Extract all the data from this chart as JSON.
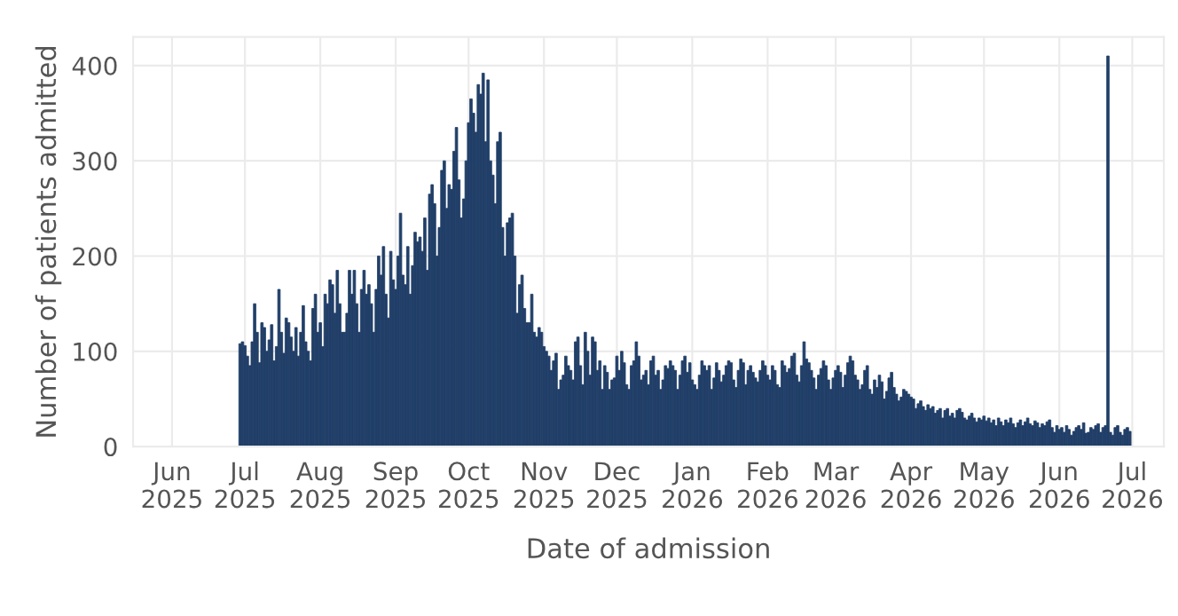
{
  "chart_data": {
    "type": "bar",
    "xlabel": "Date of admission",
    "ylabel": "Number of patients admitted",
    "color": "#213f68",
    "grid": true,
    "xlim": [
      "2025-05-16",
      "2026-07-14"
    ],
    "ylim": [
      0,
      430
    ],
    "yticks": [
      0,
      100,
      200,
      300,
      400
    ],
    "xticks": [
      {
        "value": "2025-06-01",
        "label": "Jun\n2025"
      },
      {
        "value": "2025-07-01",
        "label": "Jul\n2025"
      },
      {
        "value": "2025-08-01",
        "label": "Aug\n2025"
      },
      {
        "value": "2025-09-01",
        "label": "Sep\n2025"
      },
      {
        "value": "2025-10-01",
        "label": "Oct\n2025"
      },
      {
        "value": "2025-11-01",
        "label": "Nov\n2025"
      },
      {
        "value": "2025-12-01",
        "label": "Dec\n2025"
      },
      {
        "value": "2026-01-01",
        "label": "Jan\n2026"
      },
      {
        "value": "2026-02-01",
        "label": "Feb\n2026"
      },
      {
        "value": "2026-03-01",
        "label": "Mar\n2026"
      },
      {
        "value": "2026-04-01",
        "label": "Apr\n2026"
      },
      {
        "value": "2026-05-01",
        "label": "May\n2026"
      },
      {
        "value": "2026-06-01",
        "label": "Jun\n2026"
      },
      {
        "value": "2026-07-01",
        "label": "Jul\n2026"
      }
    ],
    "x": [
      "2025-06-29",
      "2025-06-30",
      "2025-07-01",
      "2025-07-02",
      "2025-07-03",
      "2025-07-04",
      "2025-07-05",
      "2025-07-06",
      "2025-07-07",
      "2025-07-08",
      "2025-07-09",
      "2025-07-10",
      "2025-07-11",
      "2025-07-12",
      "2025-07-13",
      "2025-07-14",
      "2025-07-15",
      "2025-07-16",
      "2025-07-17",
      "2025-07-18",
      "2025-07-19",
      "2025-07-20",
      "2025-07-21",
      "2025-07-22",
      "2025-07-23",
      "2025-07-24",
      "2025-07-25",
      "2025-07-26",
      "2025-07-27",
      "2025-07-28",
      "2025-07-29",
      "2025-07-30",
      "2025-07-31",
      "2025-08-01",
      "2025-08-02",
      "2025-08-03",
      "2025-08-04",
      "2025-08-05",
      "2025-08-06",
      "2025-08-07",
      "2025-08-08",
      "2025-08-09",
      "2025-08-10",
      "2025-08-11",
      "2025-08-12",
      "2025-08-13",
      "2025-08-14",
      "2025-08-15",
      "2025-08-16",
      "2025-08-17",
      "2025-08-18",
      "2025-08-19",
      "2025-08-20",
      "2025-08-21",
      "2025-08-22",
      "2025-08-23",
      "2025-08-24",
      "2025-08-25",
      "2025-08-26",
      "2025-08-27",
      "2025-08-28",
      "2025-08-29",
      "2025-08-30",
      "2025-08-31",
      "2025-09-01",
      "2025-09-02",
      "2025-09-03",
      "2025-09-04",
      "2025-09-05",
      "2025-09-06",
      "2025-09-07",
      "2025-09-08",
      "2025-09-09",
      "2025-09-10",
      "2025-09-11",
      "2025-09-12",
      "2025-09-13",
      "2025-09-14",
      "2025-09-15",
      "2025-09-16",
      "2025-09-17",
      "2025-09-18",
      "2025-09-19",
      "2025-09-20",
      "2025-09-21",
      "2025-09-22",
      "2025-09-23",
      "2025-09-24",
      "2025-09-25",
      "2025-09-26",
      "2025-09-27",
      "2025-09-28",
      "2025-09-29",
      "2025-09-30",
      "2025-10-01",
      "2025-10-02",
      "2025-10-03",
      "2025-10-04",
      "2025-10-05",
      "2025-10-06",
      "2025-10-07",
      "2025-10-08",
      "2025-10-09",
      "2025-10-10",
      "2025-10-11",
      "2025-10-12",
      "2025-10-13",
      "2025-10-14",
      "2025-10-15",
      "2025-10-16",
      "2025-10-17",
      "2025-10-18",
      "2025-10-19",
      "2025-10-20",
      "2025-10-21",
      "2025-10-22",
      "2025-10-23",
      "2025-10-24",
      "2025-10-25",
      "2025-10-26",
      "2025-10-27",
      "2025-10-28",
      "2025-10-29",
      "2025-10-30",
      "2025-10-31",
      "2025-11-01",
      "2025-11-02",
      "2025-11-03",
      "2025-11-04",
      "2025-11-05",
      "2025-11-06",
      "2025-11-07",
      "2025-11-08",
      "2025-11-09",
      "2025-11-10",
      "2025-11-11",
      "2025-11-12",
      "2025-11-13",
      "2025-11-14",
      "2025-11-15",
      "2025-11-16",
      "2025-11-17",
      "2025-11-18",
      "2025-11-19",
      "2025-11-20",
      "2025-11-21",
      "2025-11-22",
      "2025-11-23",
      "2025-11-24",
      "2025-11-25",
      "2025-11-26",
      "2025-11-27",
      "2025-11-28",
      "2025-11-29",
      "2025-11-30",
      "2025-12-01",
      "2025-12-02",
      "2025-12-03",
      "2025-12-04",
      "2025-12-05",
      "2025-12-06",
      "2025-12-07",
      "2025-12-08",
      "2025-12-09",
      "2025-12-10",
      "2025-12-11",
      "2025-12-12",
      "2025-12-13",
      "2025-12-14",
      "2025-12-15",
      "2025-12-16",
      "2025-12-17",
      "2025-12-18",
      "2025-12-19",
      "2025-12-20",
      "2025-12-21",
      "2025-12-22",
      "2025-12-23",
      "2025-12-24",
      "2025-12-25",
      "2025-12-26",
      "2025-12-27",
      "2025-12-28",
      "2025-12-29",
      "2025-12-30",
      "2025-12-31",
      "2026-01-01",
      "2026-01-02",
      "2026-01-03",
      "2026-01-04",
      "2026-01-05",
      "2026-01-06",
      "2026-01-07",
      "2026-01-08",
      "2026-01-09",
      "2026-01-10",
      "2026-01-11",
      "2026-01-12",
      "2026-01-13",
      "2026-01-14",
      "2026-01-15",
      "2026-01-16",
      "2026-01-17",
      "2026-01-18",
      "2026-01-19",
      "2026-01-20",
      "2026-01-21",
      "2026-01-22",
      "2026-01-23",
      "2026-01-24",
      "2026-01-25",
      "2026-01-26",
      "2026-01-27",
      "2026-01-28",
      "2026-01-29",
      "2026-01-30",
      "2026-01-31",
      "2026-02-01",
      "2026-02-02",
      "2026-02-03",
      "2026-02-04",
      "2026-02-05",
      "2026-02-06",
      "2026-02-07",
      "2026-02-08",
      "2026-02-09",
      "2026-02-10",
      "2026-02-11",
      "2026-02-12",
      "2026-02-13",
      "2026-02-14",
      "2026-02-15",
      "2026-02-16",
      "2026-02-17",
      "2026-02-18",
      "2026-02-19",
      "2026-02-20",
      "2026-02-21",
      "2026-02-22",
      "2026-02-23",
      "2026-02-24",
      "2026-02-25",
      "2026-02-26",
      "2026-02-27",
      "2026-02-28",
      "2026-03-01",
      "2026-03-02",
      "2026-03-03",
      "2026-03-04",
      "2026-03-05",
      "2026-03-06",
      "2026-03-07",
      "2026-03-08",
      "2026-03-09",
      "2026-03-10",
      "2026-03-11",
      "2026-03-12",
      "2026-03-13",
      "2026-03-14",
      "2026-03-15",
      "2026-03-16",
      "2026-03-17",
      "2026-03-18",
      "2026-03-19",
      "2026-03-20",
      "2026-03-21",
      "2026-03-22",
      "2026-03-23",
      "2026-03-24",
      "2026-03-25",
      "2026-03-26",
      "2026-03-27",
      "2026-03-28",
      "2026-03-29",
      "2026-03-30",
      "2026-03-31",
      "2026-04-01",
      "2026-04-02",
      "2026-04-03",
      "2026-04-04",
      "2026-04-05",
      "2026-04-06",
      "2026-04-07",
      "2026-04-08",
      "2026-04-09",
      "2026-04-10",
      "2026-04-11",
      "2026-04-12",
      "2026-04-13",
      "2026-04-14",
      "2026-04-15",
      "2026-04-16",
      "2026-04-17",
      "2026-04-18",
      "2026-04-19",
      "2026-04-20",
      "2026-04-21",
      "2026-04-22",
      "2026-04-23",
      "2026-04-24",
      "2026-04-25",
      "2026-04-26",
      "2026-04-27",
      "2026-04-28",
      "2026-04-29",
      "2026-04-30",
      "2026-05-01",
      "2026-05-02",
      "2026-05-03",
      "2026-05-04",
      "2026-05-05",
      "2026-05-06",
      "2026-05-07",
      "2026-05-08",
      "2026-05-09",
      "2026-05-10",
      "2026-05-11",
      "2026-05-12",
      "2026-05-13",
      "2026-05-14",
      "2026-05-15",
      "2026-05-16",
      "2026-05-17",
      "2026-05-18",
      "2026-05-19",
      "2026-05-20",
      "2026-05-21",
      "2026-05-22",
      "2026-05-23",
      "2026-05-24",
      "2026-05-25",
      "2026-05-26",
      "2026-05-27",
      "2026-05-28",
      "2026-05-29",
      "2026-05-30",
      "2026-05-31",
      "2026-06-01",
      "2026-06-02",
      "2026-06-03",
      "2026-06-04",
      "2026-06-05",
      "2026-06-06",
      "2026-06-07",
      "2026-06-08",
      "2026-06-09",
      "2026-06-10",
      "2026-06-11",
      "2026-06-12",
      "2026-06-13",
      "2026-06-14",
      "2026-06-15",
      "2026-06-16",
      "2026-06-17",
      "2026-06-18",
      "2026-06-19",
      "2026-06-20",
      "2026-06-21",
      "2026-06-22",
      "2026-06-23",
      "2026-06-24",
      "2026-06-25",
      "2026-06-26",
      "2026-06-27",
      "2026-06-28",
      "2026-06-29",
      "2026-06-30"
    ],
    "values": [
      108,
      110,
      106,
      95,
      85,
      110,
      150,
      120,
      88,
      130,
      125,
      100,
      112,
      128,
      90,
      105,
      165,
      120,
      98,
      135,
      130,
      115,
      100,
      125,
      95,
      120,
      148,
      110,
      100,
      90,
      145,
      160,
      120,
      130,
      105,
      160,
      150,
      175,
      170,
      140,
      185,
      150,
      120,
      120,
      140,
      185,
      160,
      185,
      150,
      120,
      165,
      185,
      160,
      170,
      150,
      120,
      165,
      200,
      180,
      210,
      160,
      135,
      205,
      175,
      165,
      200,
      245,
      180,
      170,
      210,
      160,
      190,
      225,
      215,
      220,
      205,
      240,
      185,
      265,
      275,
      255,
      200,
      230,
      290,
      300,
      250,
      275,
      270,
      310,
      335,
      280,
      240,
      260,
      300,
      340,
      365,
      350,
      330,
      380,
      370,
      392,
      320,
      385,
      300,
      285,
      255,
      320,
      330,
      230,
      200,
      235,
      240,
      245,
      200,
      140,
      170,
      180,
      145,
      130,
      130,
      160,
      120,
      115,
      125,
      120,
      105,
      100,
      95,
      80,
      90,
      98,
      60,
      70,
      75,
      95,
      85,
      80,
      70,
      110,
      115,
      85,
      65,
      120,
      100,
      75,
      115,
      110,
      80,
      90,
      60,
      85,
      78,
      60,
      70,
      72,
      95,
      80,
      100,
      88,
      65,
      60,
      85,
      90,
      110,
      95,
      70,
      75,
      80,
      65,
      90,
      95,
      75,
      80,
      60,
      70,
      85,
      82,
      90,
      85,
      80,
      60,
      75,
      90,
      95,
      78,
      88,
      70,
      65,
      60,
      75,
      90,
      85,
      80,
      85,
      60,
      72,
      88,
      80,
      68,
      75,
      85,
      90,
      88,
      70,
      62,
      80,
      92,
      88,
      65,
      80,
      85,
      78,
      72,
      68,
      80,
      90,
      85,
      75,
      70,
      85,
      80,
      65,
      62,
      90,
      85,
      78,
      82,
      95,
      98,
      75,
      68,
      85,
      110,
      92,
      88,
      80,
      72,
      60,
      75,
      82,
      90,
      85,
      70,
      60,
      72,
      80,
      85,
      78,
      62,
      75,
      88,
      95,
      90,
      75,
      70,
      60,
      65,
      80,
      85,
      60,
      55,
      70,
      62,
      75,
      68,
      50,
      58,
      72,
      78,
      62,
      55,
      48,
      52,
      60,
      58,
      55,
      52,
      50,
      40,
      45,
      48,
      42,
      38,
      44,
      40,
      42,
      35,
      38,
      40,
      30,
      38,
      40,
      32,
      35,
      30,
      38,
      40,
      36,
      30,
      28,
      32,
      35,
      30,
      26,
      30,
      28,
      32,
      27,
      30,
      25,
      28,
      22,
      30,
      26,
      22,
      28,
      25,
      30,
      24,
      20,
      25,
      28,
      22,
      26,
      30,
      24,
      22,
      27,
      25,
      20,
      24,
      22,
      26,
      28,
      20,
      15,
      22,
      18,
      20,
      15,
      22,
      18,
      12,
      16,
      20,
      22,
      18,
      25,
      14,
      15,
      20,
      18,
      22,
      24,
      15,
      20,
      22,
      410,
      15,
      12,
      20,
      22,
      15,
      12,
      18,
      20,
      16
    ]
  }
}
